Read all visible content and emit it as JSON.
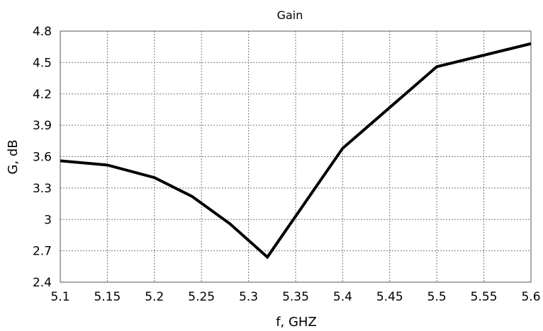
{
  "chart_data": {
    "type": "line",
    "title": "Gain",
    "xlabel": "f, GHZ",
    "ylabel": "G, dB",
    "xlim": [
      5.1,
      5.6
    ],
    "ylim": [
      2.4,
      4.8
    ],
    "x_ticks": [
      "5.1",
      "5.15",
      "5.2",
      "5.25",
      "5.3",
      "5.35",
      "5.4",
      "5.45",
      "5.5",
      "5.55",
      "5.6"
    ],
    "y_ticks": [
      "2.4",
      "2.7",
      "3",
      "3.3",
      "3.6",
      "3.9",
      "4.2",
      "4.5",
      "4.8"
    ],
    "grid": true,
    "line_color": "#000000",
    "series": [
      {
        "x": [
          5.1,
          5.15,
          5.2,
          5.24,
          5.28,
          5.32,
          5.4,
          5.5,
          5.6
        ],
        "values": [
          3.56,
          3.52,
          3.4,
          3.22,
          2.96,
          2.64,
          3.68,
          4.46,
          4.68
        ]
      }
    ]
  }
}
